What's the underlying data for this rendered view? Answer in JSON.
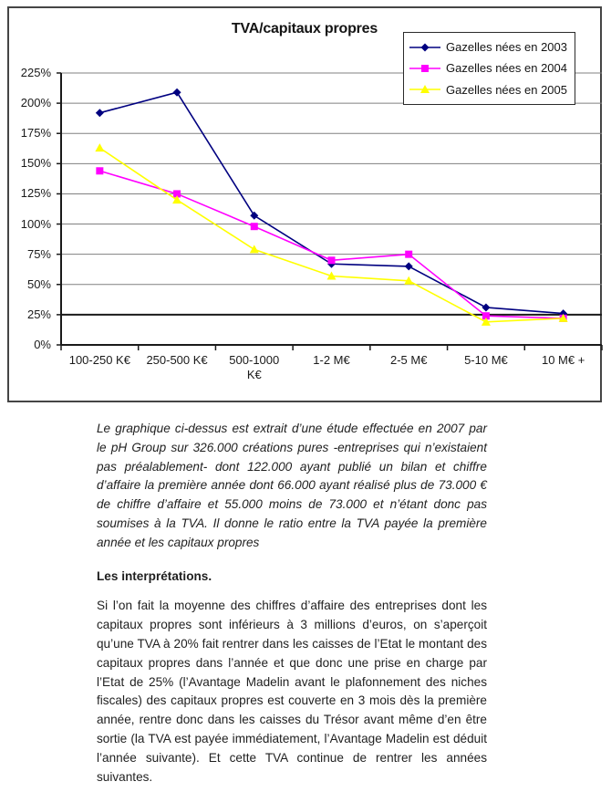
{
  "chart_data": {
    "type": "line",
    "title": "TVA/capitaux propres",
    "categories": [
      "100-250 K€",
      "250-500 K€",
      "500-1000\nK€",
      "1-2 M€",
      "2-5 M€",
      "5-10 M€",
      "10 M€ +"
    ],
    "series": [
      {
        "name": "Gazelles nées en 2003",
        "color": "#000080",
        "marker": "diamond",
        "values": [
          192,
          209,
          107,
          67,
          65,
          31,
          26
        ]
      },
      {
        "name": "Gazelles nées en 2004",
        "color": "#FF00FF",
        "marker": "square",
        "values": [
          144,
          125,
          98,
          70,
          75,
          24,
          22
        ]
      },
      {
        "name": "Gazelles nées en 2005",
        "color": "#FFFF00",
        "marker": "triangle",
        "values": [
          163,
          120,
          79,
          57,
          53,
          19,
          22
        ]
      }
    ],
    "ylim": [
      0,
      225
    ],
    "ystep": 25,
    "yticks": [
      "0%",
      "25%",
      "50%",
      "75%",
      "100%",
      "125%",
      "150%",
      "175%",
      "200%",
      "225%"
    ],
    "grid": true,
    "legend_position": "top-right",
    "emphasized_gridlines": [
      0,
      25
    ],
    "colors": {
      "gridline": "#808080",
      "axis": "#1a1a1a",
      "panel_border": "#454545",
      "text": "#1a1a1a"
    }
  },
  "text": {
    "intro": "Le graphique ci-dessus est extrait d’une étude effectuée en 2007 par le pH Group sur 326.000 créations pures -entreprises qui n’existaient pas préalablement- dont 122.000 ayant publié un bilan et chiffre d’affaire la première année dont 66.000 ayant réalisé plus de 73.000 € de chiffre d’affaire et 55.000 moins de 73.000 et n’étant donc pas soumises à la TVA. Il donne le ratio entre la TVA payée la première année et les capitaux propres",
    "heading": "Les interprétations.",
    "body": "Si l’on fait la moyenne des chiffres d’affaire des entreprises dont les capitaux propres sont inférieurs à 3 millions d’euros, on s’aperçoit qu’une TVA à 20% fait rentrer dans les caisses de l’Etat le montant des capitaux propres dans l’année et que donc une prise en charge par l’Etat de 25% (l’Avantage Madelin avant le plafonnement des niches fiscales) des capitaux propres est couverte en 3 mois dès la première année, rentre donc dans les caisses du Trésor avant même d’en être sortie (la TVA est payée immédiatement, l’Avantage Madelin est déduit l’année suivante). Et cette TVA continue de rentrer les années suivantes."
  }
}
